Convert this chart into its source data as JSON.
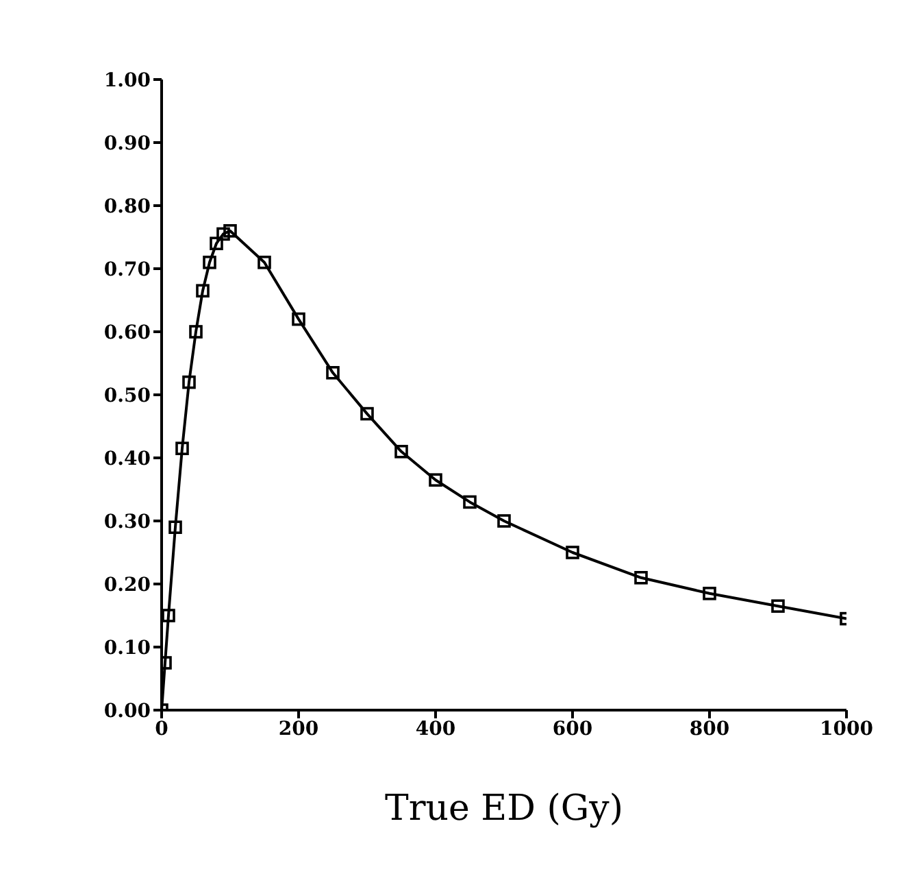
{
  "chart_data": {
    "type": "line",
    "xlabel": "True ED (Gy)",
    "x": [
      0,
      5,
      10,
      20,
      30,
      40,
      50,
      60,
      70,
      80,
      90,
      100,
      150,
      200,
      250,
      300,
      350,
      400,
      450,
      500,
      600,
      700,
      800,
      900,
      1000
    ],
    "series": [
      {
        "color": "#000000",
        "values": [
          0,
          0.075,
          0.15,
          0.29,
          0.415,
          0.52,
          0.6,
          0.665,
          0.71,
          0.74,
          0.755,
          0.76,
          0.71,
          0.62,
          0.535,
          0.47,
          0.41,
          0.365,
          0.33,
          0.3,
          0.25,
          0.21,
          0.185,
          0.165,
          0.145
        ]
      }
    ],
    "xlim": [
      0,
      1000
    ],
    "xticks": [
      0,
      200,
      400,
      600,
      800,
      1000
    ],
    "ylim": [
      0,
      1
    ],
    "yticks": [
      {
        "value": 0,
        "label": "0.00"
      },
      {
        "value": 0.1,
        "label": "0.10"
      },
      {
        "value": 0.2,
        "label": "0.20"
      },
      {
        "value": 0.3,
        "label": "0.30"
      },
      {
        "value": 0.4,
        "label": "0.40"
      },
      {
        "value": 0.5,
        "label": "0.50"
      },
      {
        "value": 0.6,
        "label": "0.60"
      },
      {
        "value": 0.7,
        "label": "0.70"
      },
      {
        "value": 0.8,
        "label": "0.80"
      },
      {
        "value": 0.9,
        "label": "0.90"
      },
      {
        "value": 1,
        "label": "1.00"
      }
    ],
    "grid": false,
    "legend": false,
    "marker": "square",
    "line_style": "solid"
  }
}
